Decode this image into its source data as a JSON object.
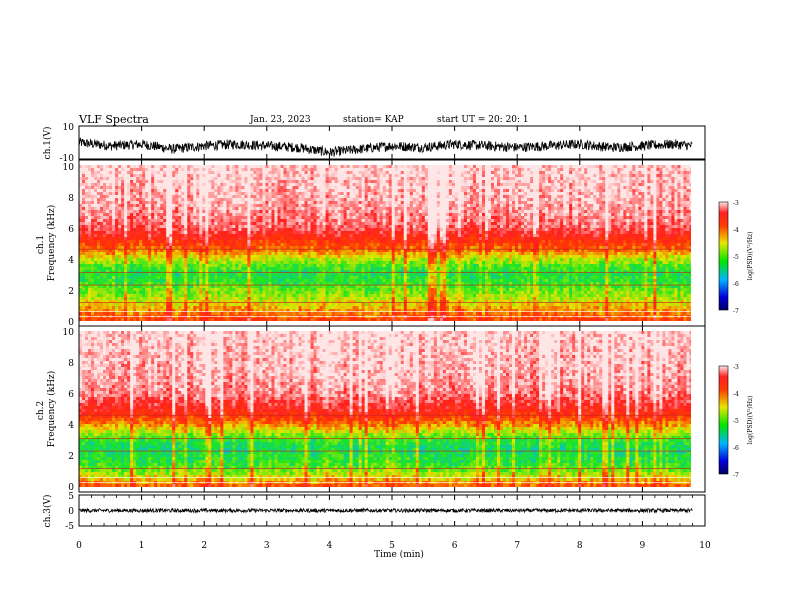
{
  "header": {
    "title": "VLF Spectra",
    "date": "Jan. 23, 2023",
    "station": "station= KAP",
    "start": "start  UT  =   20: 20: 1"
  },
  "colors": {
    "spectro_low": "#0000c8",
    "spectro_mid": "#1ee61e",
    "spectro_yellow": "#e6e600",
    "spectro_red": "#ff1e1e",
    "spectro_bg": "#ffffff",
    "trace": "#000000"
  },
  "chart_data": [
    {
      "type": "line",
      "name": "ch1-waveform",
      "ylabel": "ch.1(V)",
      "yticks": [
        "10",
        "-10"
      ],
      "ylim": [
        -10,
        10
      ],
      "xlim": [
        0,
        10
      ],
      "x": [
        0,
        0.5,
        1.0,
        1.5,
        2.0,
        2.5,
        3.0,
        3.5,
        4.0,
        4.5,
        5.0,
        5.5,
        6.0,
        6.5,
        7.0,
        7.5,
        8.0,
        8.5,
        9.0,
        9.5,
        9.8
      ],
      "y": [
        0,
        -2,
        -1,
        -4,
        -2,
        -1,
        -2,
        -3,
        -6,
        -4,
        -2,
        -3,
        -1,
        -2,
        -3,
        -2,
        -1,
        -3,
        -2,
        -1,
        -2
      ],
      "y_spread": 3,
      "grid": false
    },
    {
      "type": "heatmap",
      "name": "ch1-spectrogram",
      "ylabel": "ch.1\nFrequency  (kHz)",
      "yticks": [
        "10",
        "8",
        "6",
        "4",
        "2",
        "0"
      ],
      "ylim": [
        0,
        10
      ],
      "xlim": [
        0,
        9.8
      ],
      "freq_kHz": [
        0,
        0.5,
        1,
        1.5,
        2,
        2.5,
        3,
        3.5,
        4,
        4.5,
        5,
        5.5,
        6,
        7,
        8,
        9,
        10
      ],
      "log_psd": [
        -4.0,
        -4.3,
        -4.6,
        -4.9,
        -5.1,
        -5.3,
        -5.4,
        -5.2,
        -4.8,
        -4.3,
        -4.0,
        -3.7,
        -3.4,
        -3.25,
        -3.15,
        -3.1,
        -3.05
      ],
      "colorbar": {
        "label": "log(PSD)(V²/Hz)",
        "ticks": [
          "-3",
          "-4",
          "-5",
          "-6",
          "-7"
        ],
        "range": [
          -7,
          -3
        ]
      }
    },
    {
      "type": "heatmap",
      "name": "ch2-spectrogram",
      "ylabel": "ch.2\nFrequency  (kHz)",
      "yticks": [
        "10",
        "8",
        "6",
        "4",
        "2",
        "0"
      ],
      "ylim": [
        0,
        10
      ],
      "xlim": [
        0,
        9.8
      ],
      "freq_kHz": [
        0,
        0.5,
        1,
        1.5,
        2,
        2.5,
        3,
        3.5,
        4,
        4.5,
        5,
        5.5,
        6,
        7,
        8,
        9,
        10
      ],
      "log_psd": [
        -4.1,
        -4.6,
        -5.0,
        -5.3,
        -5.4,
        -5.5,
        -5.3,
        -4.9,
        -4.4,
        -4.0,
        -3.7,
        -3.5,
        -3.3,
        -3.2,
        -3.15,
        -3.1,
        -3.05
      ],
      "colorbar": {
        "label": "log(PSD)(V²/Hz)",
        "ticks": [
          "-3",
          "-4",
          "-5",
          "-6",
          "-7"
        ],
        "range": [
          -7,
          -3
        ]
      }
    },
    {
      "type": "line",
      "name": "ch3-waveform",
      "ylabel": "ch.3(V)",
      "yticks": [
        "5",
        "0",
        "-5"
      ],
      "ylim": [
        -5,
        5
      ],
      "xlim": [
        0,
        10
      ],
      "x": [
        0,
        9.8
      ],
      "y": [
        0,
        0
      ],
      "y_spread": 0.6,
      "grid": false
    }
  ],
  "xaxis": {
    "label": "Time  (min)",
    "ticks": [
      "0",
      "1",
      "2",
      "3",
      "4",
      "5",
      "6",
      "7",
      "8",
      "9",
      "10"
    ],
    "range": [
      0,
      10
    ]
  }
}
